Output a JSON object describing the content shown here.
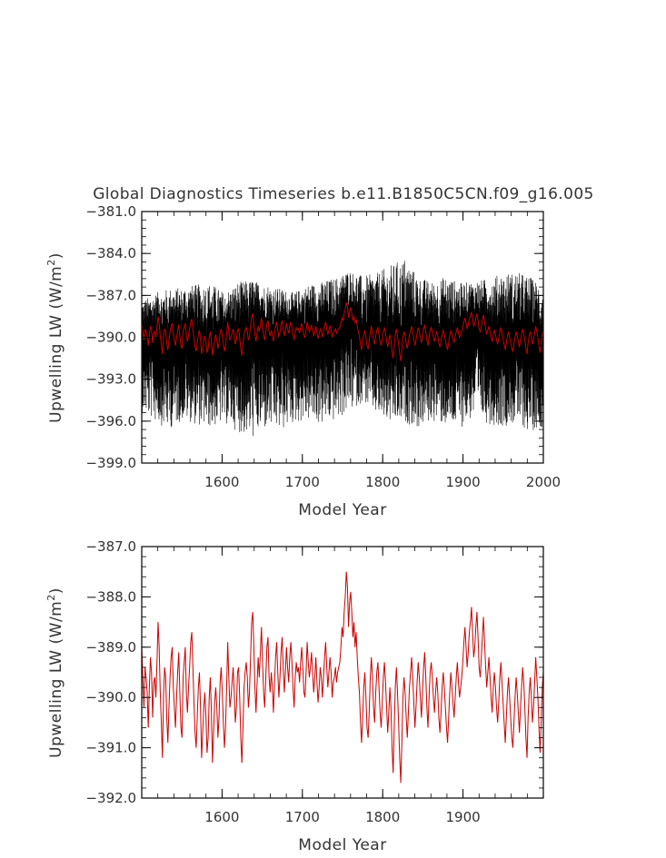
{
  "chart_data": [
    {
      "type": "line",
      "title": "Global Diagnostics Timeseries b.e11.B1850C5CN.f09_g16.005",
      "xlabel": "Model Year",
      "ylabel": "Upwelling LW (W/m²)",
      "xlim": [
        1500,
        2000
      ],
      "ylim": [
        -399.0,
        -381.0
      ],
      "x_ticks": [
        "1600",
        "1700",
        "1800",
        "1900",
        "2000"
      ],
      "y_ticks": [
        "−381.0",
        "−384.0",
        "−387.0",
        "−390.0",
        "−393.0",
        "−396.0",
        "−399.0"
      ],
      "grid": false,
      "series": [
        {
          "description_color": "#000000",
          "band": "high-frequency",
          "x_start": 1500,
          "x_end": 2000,
          "envelope_upper": [
            -387.4,
            -386.8,
            -386.5,
            -386.4,
            -386.2,
            -386.1,
            -386.8,
            -386.0,
            -385.9,
            -386.2,
            -386.5,
            -386.8,
            -386.2,
            -386.0,
            -385.7,
            -385.2,
            -385.6,
            -385.4,
            -384.8,
            -384.3,
            -385.7,
            -386.0,
            -385.6,
            -386.1,
            -386.0,
            -385.8,
            -385.4,
            -385.3,
            -385.6,
            -386.4
          ],
          "envelope_lower": [
            -395.4,
            -396.1,
            -396.6,
            -395.9,
            -396.3,
            -396.5,
            -396.2,
            -396.8,
            -397.3,
            -396.6,
            -396.8,
            -396.2,
            -396.0,
            -396.3,
            -396.0,
            -395.4,
            -394.6,
            -395.7,
            -396.3,
            -396.1,
            -396.6,
            -396.0,
            -396.4,
            -396.5,
            -395.8,
            -396.2,
            -396.4,
            -396.2,
            -396.8,
            -396.4
          ]
        },
        {
          "description_color": "#cc0000",
          "band": "annual",
          "x_start": 1500,
          "x_end": 2000,
          "values": [
            -389.0,
            -389.6,
            -390.2,
            -389.4,
            -389.6,
            -389.9,
            -390.6,
            -389.8,
            -389.2,
            -389.5,
            -390.4,
            -389.7,
            -389.6,
            -390.0,
            -389.3,
            -388.5,
            -389.0,
            -389.9,
            -390.5,
            -391.2,
            -390.0,
            -389.4,
            -389.6,
            -390.4,
            -390.9,
            -390.2,
            -389.6,
            -389.2,
            -389.0,
            -389.8,
            -390.2,
            -390.6,
            -390.0,
            -389.5,
            -389.1,
            -389.9,
            -390.6,
            -390.8,
            -389.6,
            -389.3,
            -389.0,
            -389.9,
            -390.3,
            -389.8,
            -389.4,
            -388.9,
            -388.7,
            -389.4,
            -390.1,
            -390.7,
            -391.0,
            -390.4,
            -389.8,
            -389.5,
            -390.2,
            -391.2,
            -390.7,
            -390.2,
            -389.9,
            -390.4,
            -391.1,
            -390.8,
            -390.0,
            -389.6,
            -390.3,
            -391.3,
            -390.7,
            -390.1,
            -389.8,
            -390.2,
            -390.8,
            -390.4,
            -389.7,
            -389.4,
            -389.9,
            -390.5,
            -391.0,
            -390.6,
            -389.8,
            -388.9,
            -389.6,
            -390.2,
            -390.0,
            -389.7,
            -389.4,
            -389.9,
            -390.5,
            -390.2,
            -389.5,
            -389.4,
            -390.0,
            -390.8,
            -391.3,
            -390.6,
            -389.8,
            -389.5,
            -389.3,
            -389.6,
            -390.2,
            -389.9,
            -389.2,
            -388.5,
            -388.3,
            -389.0,
            -389.8,
            -390.3,
            -389.7,
            -389.2,
            -389.6,
            -389.1,
            -388.6,
            -389.3,
            -389.9,
            -390.2,
            -389.6,
            -389.0,
            -388.8,
            -389.6,
            -389.9,
            -389.5,
            -389.8,
            -390.3,
            -389.7,
            -389.2,
            -388.9,
            -389.5,
            -390.0,
            -389.6,
            -389.1,
            -388.8,
            -389.4,
            -389.9,
            -389.5,
            -389.0,
            -389.4,
            -389.7,
            -389.2,
            -388.9,
            -389.3,
            -389.8,
            -390.2,
            -389.6,
            -389.3,
            -389.5,
            -389.4,
            -389.7,
            -389.3,
            -389.0,
            -389.4,
            -389.9,
            -390.0,
            -389.5,
            -388.9,
            -389.3,
            -389.6,
            -389.4,
            -389.1,
            -389.5,
            -389.9,
            -389.6,
            -389.2,
            -389.7,
            -390.1,
            -389.8,
            -389.4,
            -389.6,
            -390.0,
            -389.6,
            -389.2,
            -388.9,
            -389.4,
            -389.8,
            -389.5,
            -389.2,
            -389.5,
            -390.0,
            -389.7,
            -389.6,
            -389.4,
            -389.7,
            -389.5,
            -389.4,
            -389.3,
            -389.0,
            -388.6,
            -388.8,
            -388.3,
            -388.0,
            -387.5,
            -387.8,
            -388.6,
            -388.1,
            -387.9,
            -388.3,
            -388.8,
            -388.5,
            -389.0,
            -388.7,
            -389.2,
            -389.6,
            -389.9,
            -390.5,
            -390.9,
            -390.4,
            -389.8,
            -389.5,
            -390.0,
            -390.6,
            -390.8,
            -390.3,
            -389.6,
            -389.2,
            -389.6,
            -390.2,
            -390.5,
            -389.9,
            -389.5,
            -389.3,
            -389.8,
            -390.3,
            -390.6,
            -390.1,
            -389.6,
            -389.3,
            -389.7,
            -390.2,
            -390.7,
            -390.3,
            -389.8,
            -390.2,
            -391.0,
            -391.5,
            -390.6,
            -389.8,
            -389.4,
            -389.9,
            -390.5,
            -391.2,
            -391.7,
            -390.9,
            -390.0,
            -389.6,
            -389.9,
            -390.4,
            -390.8,
            -390.3,
            -389.8,
            -389.5,
            -389.2,
            -389.6,
            -390.1,
            -390.6,
            -390.2,
            -389.7,
            -389.3,
            -389.6,
            -390.0,
            -390.4,
            -389.9,
            -389.4,
            -389.1,
            -389.6,
            -390.2,
            -390.6,
            -390.0,
            -389.5,
            -389.3,
            -389.6,
            -390.0,
            -390.3,
            -389.9,
            -389.6,
            -389.9,
            -390.4,
            -390.7,
            -390.3,
            -389.8,
            -389.5,
            -389.8,
            -390.2,
            -390.6,
            -390.9,
            -390.4,
            -389.9,
            -389.5,
            -389.8,
            -390.1,
            -390.4,
            -390.0,
            -389.6,
            -389.3,
            -389.7,
            -390.0,
            -389.8,
            -389.6,
            -389.3,
            -388.9,
            -388.6,
            -389.0,
            -389.4,
            -389.1,
            -388.7,
            -388.5,
            -388.2,
            -388.7,
            -389.2,
            -389.0,
            -388.6,
            -388.3,
            -388.8,
            -389.4,
            -389.6,
            -389.2,
            -388.8,
            -388.4,
            -388.9,
            -389.4,
            -389.8,
            -389.5,
            -389.2,
            -389.6,
            -390.0,
            -390.3,
            -389.8,
            -389.5,
            -389.8,
            -390.2,
            -390.5,
            -390.1,
            -389.6,
            -389.3,
            -389.7,
            -390.1,
            -390.5,
            -390.9,
            -390.4,
            -389.9,
            -389.6,
            -390.0,
            -390.4,
            -390.8,
            -391.0,
            -390.5,
            -390.0,
            -389.6,
            -389.9,
            -390.3,
            -390.7,
            -390.2,
            -389.8,
            -389.4,
            -389.7,
            -390.2,
            -390.8,
            -391.2,
            -390.4,
            -389.9,
            -389.6,
            -390.0,
            -390.5,
            -390.2,
            -389.7,
            -389.2,
            -389.6,
            -390.0,
            -390.6,
            -391.1,
            -390.5,
            -389.8,
            -389.5
          ]
        }
      ]
    },
    {
      "type": "line",
      "title": "",
      "xlabel": "Model Year",
      "ylabel": "Upwelling LW (W/m²)",
      "xlim": [
        1500,
        2000
      ],
      "ylim": [
        -392.0,
        -387.0
      ],
      "x_ticks": [
        "1600",
        "1700",
        "1800",
        "1900"
      ],
      "y_ticks": [
        "−387.0",
        "−388.0",
        "−389.0",
        "−390.0",
        "−391.0",
        "−392.0"
      ],
      "grid": false,
      "series": [
        {
          "description_color": "#cc0000",
          "band": "annual",
          "ref": 0
        }
      ]
    }
  ],
  "labels": {
    "y_unit_prefix": "Upwelling LW (W/m",
    "y_unit_sup": "2",
    "y_unit_suffix": ")"
  }
}
